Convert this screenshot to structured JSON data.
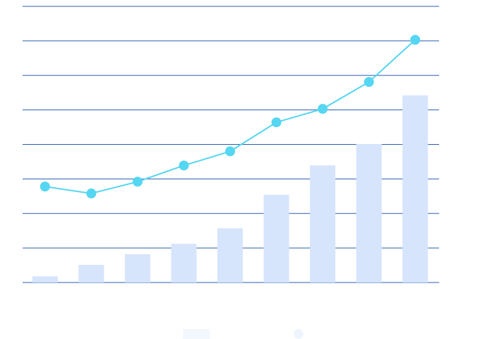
{
  "chart_data": {
    "type": "bar+line",
    "categories": [
      "",
      "",
      "",
      "",
      "",
      "",
      "",
      "",
      ""
    ],
    "series": [
      {
        "type": "bar",
        "values": [
          0.18,
          0.51,
          0.82,
          1.12,
          1.57,
          2.54,
          3.39,
          4.01,
          5.42
        ]
      },
      {
        "type": "line",
        "values": [
          2.78,
          2.58,
          2.92,
          3.39,
          3.8,
          4.64,
          5.03,
          5.81,
          7.03
        ]
      }
    ],
    "ylim": [
      0,
      8
    ],
    "yticks": [
      0,
      1,
      2,
      3,
      4,
      5,
      6,
      7,
      8
    ],
    "grid": true,
    "legend": "bottom",
    "colors": {
      "bar": "#d6e4fc",
      "line": "#55d6f2",
      "grid": "#2a5db0",
      "legend_bar": "#f3f7fe",
      "legend_line": "#eef5fe"
    }
  }
}
